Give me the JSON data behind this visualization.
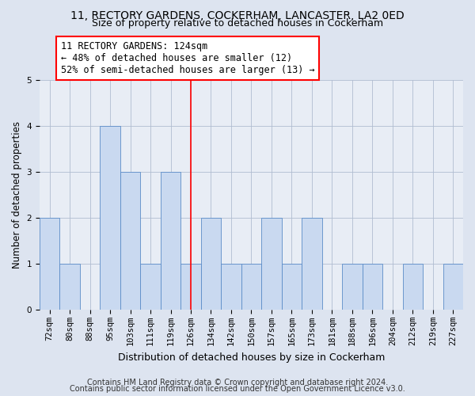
{
  "title1": "11, RECTORY GARDENS, COCKERHAM, LANCASTER, LA2 0ED",
  "title2": "Size of property relative to detached houses in Cockerham",
  "xlabel": "Distribution of detached houses by size in Cockerham",
  "ylabel": "Number of detached properties",
  "categories": [
    "72sqm",
    "80sqm",
    "88sqm",
    "95sqm",
    "103sqm",
    "111sqm",
    "119sqm",
    "126sqm",
    "134sqm",
    "142sqm",
    "150sqm",
    "157sqm",
    "165sqm",
    "173sqm",
    "181sqm",
    "188sqm",
    "196sqm",
    "204sqm",
    "212sqm",
    "219sqm",
    "227sqm"
  ],
  "values": [
    2,
    1,
    0,
    4,
    3,
    1,
    3,
    1,
    2,
    1,
    1,
    2,
    1,
    2,
    0,
    1,
    1,
    0,
    1,
    0,
    1
  ],
  "bar_color": "#c9d9f0",
  "bar_edge_color": "#5b8cc8",
  "reference_line_x": 7,
  "annotation_line1": "11 RECTORY GARDENS: 124sqm",
  "annotation_line2": "← 48% of detached houses are smaller (12)",
  "annotation_line3": "52% of semi-detached houses are larger (13) →",
  "annotation_box_facecolor": "white",
  "annotation_box_edgecolor": "red",
  "ylim": [
    0,
    5
  ],
  "yticks": [
    0,
    1,
    2,
    3,
    4,
    5
  ],
  "footer1": "Contains HM Land Registry data © Crown copyright and database right 2024.",
  "footer2": "Contains public sector information licensed under the Open Government Licence v3.0.",
  "fig_facecolor": "#dde4f0",
  "plot_facecolor": "#e8edf5",
  "grid_color": "#b0bcd0",
  "title_fontsize": 10,
  "subtitle_fontsize": 9,
  "tick_fontsize": 7.5,
  "ylabel_fontsize": 8.5,
  "xlabel_fontsize": 9,
  "annotation_fontsize": 8.5,
  "footer_fontsize": 7
}
